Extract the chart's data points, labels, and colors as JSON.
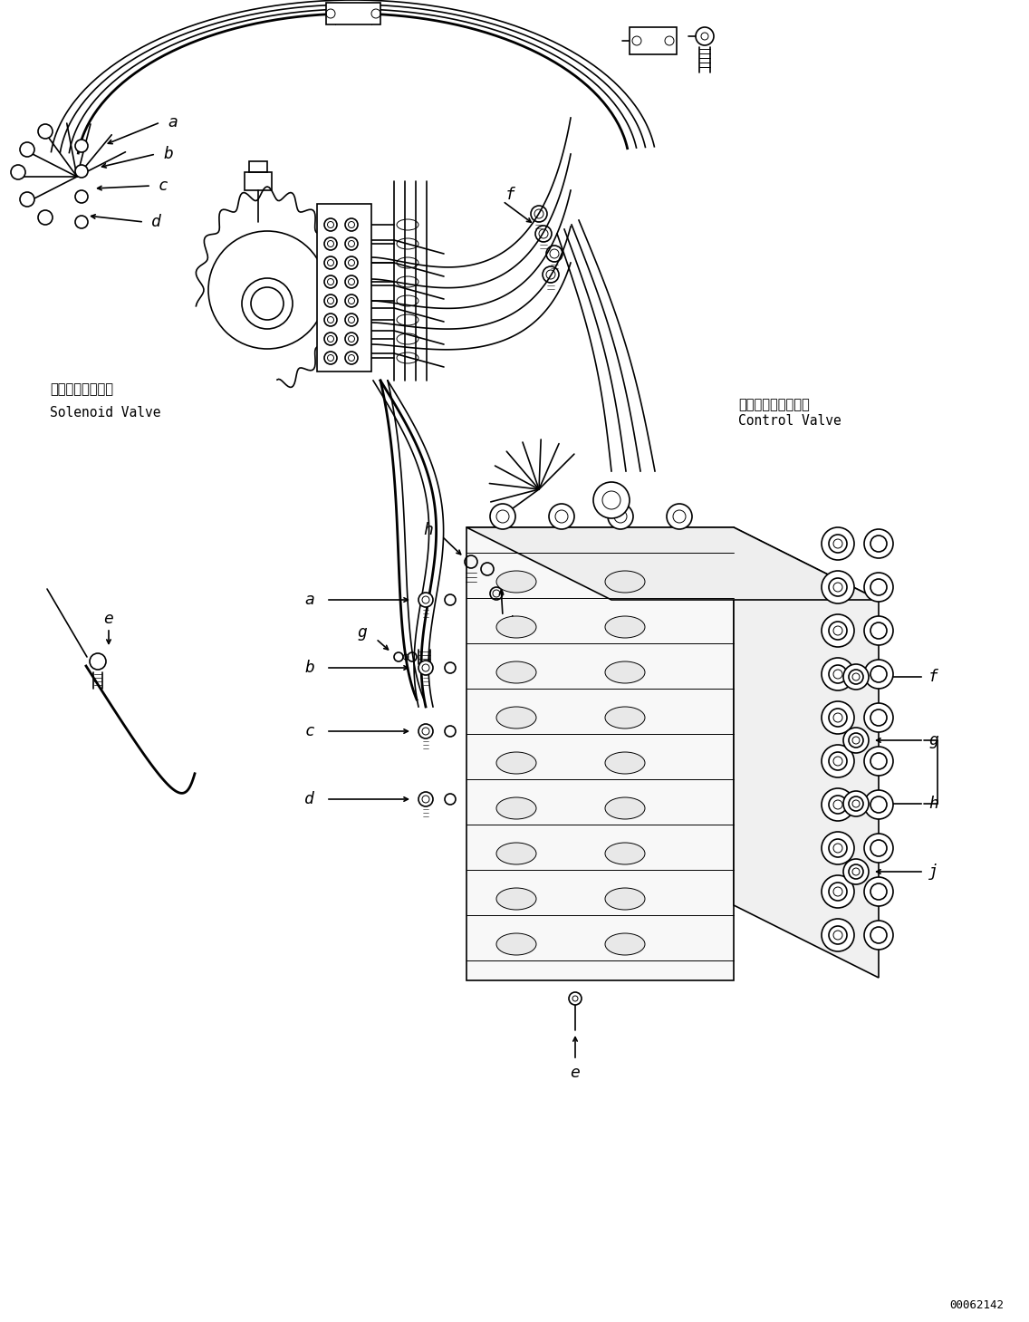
{
  "bg_color": "#ffffff",
  "line_color": "#000000",
  "fig_width": 11.36,
  "fig_height": 14.59,
  "dpi": 100,
  "watermark": "00062142",
  "labels": {
    "solenoid_jp": "ソレノイドバルブ",
    "solenoid_en": "Solenoid Valve",
    "control_jp": "コントロールバルブ",
    "control_en": "Control Valve"
  },
  "annotation_fontsize": 13,
  "label_fontsize": 10.5,
  "watermark_fontsize": 9
}
